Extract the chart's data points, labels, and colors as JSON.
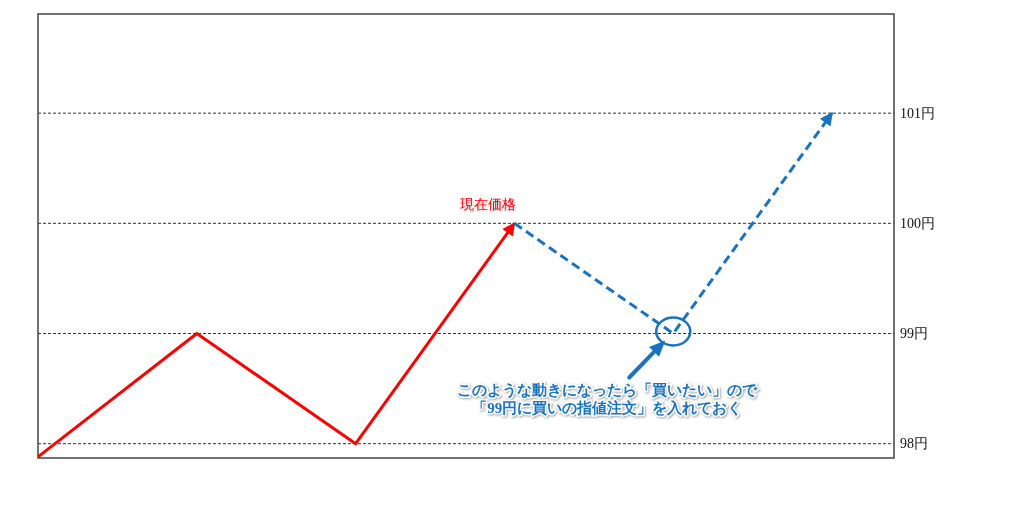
{
  "chart_data": {
    "type": "line",
    "categories": [
      null,
      null,
      null,
      null,
      null,
      null
    ],
    "series": [
      {
        "color": "#ff0000",
        "line_style": "solid",
        "values": [
          97.88,
          99,
          98,
          100,
          null,
          null
        ]
      },
      {
        "color": "#1a73c0",
        "line_style": "dashed",
        "values": [
          null,
          null,
          null,
          100,
          99,
          101
        ]
      }
    ],
    "ylim": [
      97.87,
      101.9
    ],
    "yticks": [
      {
        "value": 98,
        "label": "98円"
      },
      {
        "value": 99,
        "label": "99円"
      },
      {
        "value": 100,
        "label": "100円"
      },
      {
        "value": 101,
        "label": "101円"
      }
    ],
    "grid": "y",
    "tick_labels": "y",
    "annotations": [
      "現在価格",
      "このような動きになったら「買いたい」ので",
      "「99円に買いの指値注文」を入れておく"
    ]
  }
}
